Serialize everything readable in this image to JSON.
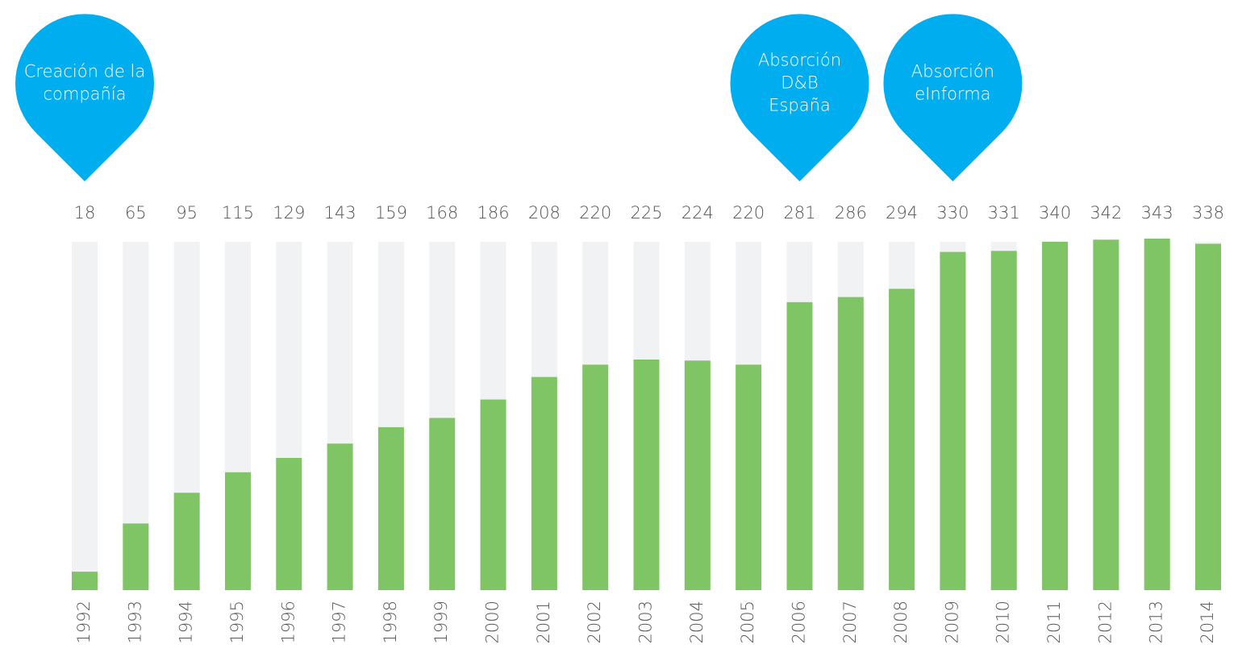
{
  "chart_data": {
    "type": "bar",
    "categories": [
      "1992",
      "1993",
      "1994",
      "1995",
      "1996",
      "1997",
      "1998",
      "1999",
      "2000",
      "2001",
      "2002",
      "2003",
      "2004",
      "2005",
      "2006",
      "2007",
      "2008",
      "2009",
      "2010",
      "2011",
      "2012",
      "2013",
      "2014"
    ],
    "values": [
      18,
      65,
      95,
      115,
      129,
      143,
      159,
      168,
      186,
      208,
      220,
      225,
      224,
      220,
      281,
      286,
      294,
      330,
      331,
      340,
      342,
      343,
      338
    ],
    "color": "#80c565",
    "track_color": "#f1f2f4",
    "ylim": [
      0,
      343
    ],
    "annotations": [
      {
        "category": "1992",
        "text": [
          "Creación de la",
          "compañía"
        ],
        "color": "#00aeef"
      },
      {
        "category": "2006",
        "text": [
          "Absorción",
          "D&B",
          "España"
        ],
        "color": "#00aeef"
      },
      {
        "category": "2009",
        "text": [
          "Absorción",
          "eInforma"
        ],
        "color": "#00aeef"
      }
    ]
  }
}
